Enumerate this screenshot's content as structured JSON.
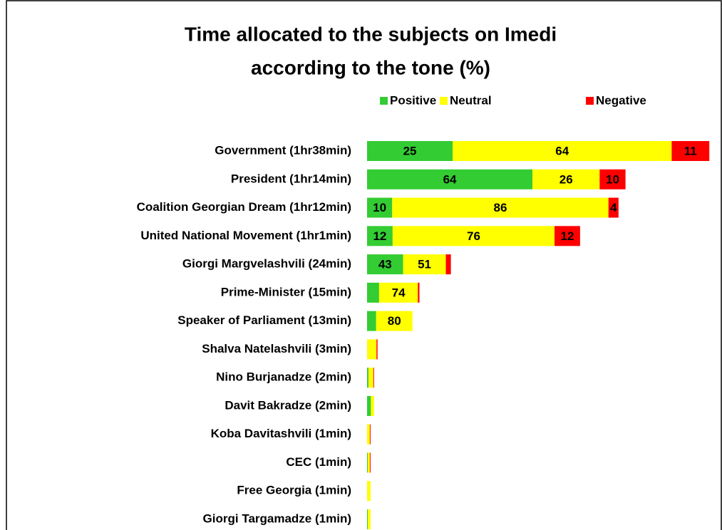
{
  "chart_data": {
    "type": "stacked-bar-horizontal",
    "title": [
      "Time allocated to the subjects on Imedi",
      "according to the tone (%)"
    ],
    "categories": [
      "Government (1hr38min)",
      "President (1hr14min)",
      "Coalition Georgian Dream (1hr12min)",
      "United National Movement (1hr1min)",
      "Giorgi Margvelashvili (24min)",
      "Prime-Minister (15min)",
      "Speaker of Parliament (13min)",
      "Shalva Natelashvili (3min)",
      "Nino Burjanadze (2min)",
      "Davit Bakradze (2min)",
      "Koba Davitashvili (1min)",
      "CEC (1min)",
      "Free Georgia (1min)",
      "Giorgi Targamadze (1min)"
    ],
    "durations_min": [
      98,
      74,
      72,
      61,
      24,
      15,
      13,
      3,
      2,
      2,
      1,
      1,
      1,
      1
    ],
    "series": [
      {
        "name": "Positive",
        "color": "#33cc33",
        "values": [
          25,
          64,
          10,
          12,
          43,
          23,
          20,
          0,
          20,
          55,
          0,
          20,
          0,
          20
        ],
        "value_labels": [
          "25",
          "64",
          "10",
          "12",
          "43",
          null,
          null,
          null,
          null,
          null,
          null,
          null,
          null,
          null
        ]
      },
      {
        "name": "Neutral",
        "color": "#ffff00",
        "values": [
          64,
          26,
          86,
          76,
          51,
          74,
          80,
          90,
          70,
          45,
          80,
          60,
          100,
          80
        ],
        "value_labels": [
          "64",
          "26",
          "86",
          "76",
          "51",
          "74",
          "80",
          null,
          null,
          null,
          null,
          null,
          null,
          null
        ]
      },
      {
        "name": "Negative",
        "color": "#ff0000",
        "values": [
          11,
          10,
          4,
          12,
          6,
          3,
          0,
          10,
          10,
          0,
          20,
          20,
          0,
          0
        ],
        "value_labels": [
          "11",
          "10",
          "4",
          "12",
          null,
          null,
          null,
          null,
          null,
          null,
          null,
          null,
          null,
          null
        ]
      }
    ],
    "legend": "top"
  }
}
